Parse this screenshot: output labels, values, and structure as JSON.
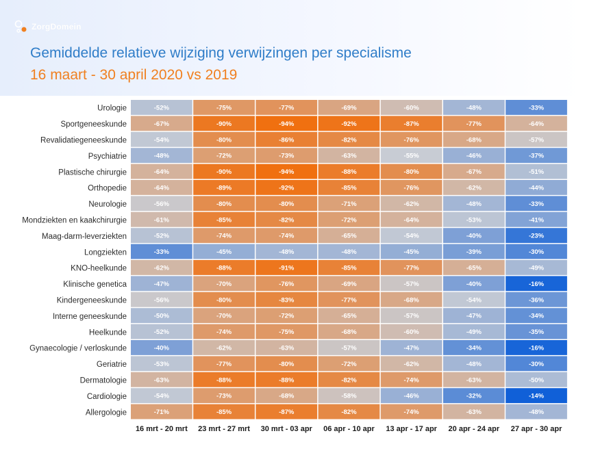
{
  "brand": {
    "name": "ZorgDomein"
  },
  "header": {
    "title": "Gemiddelde relatieve wijziging verwijzingen per specialisme",
    "subtitle": "16 maart - 30 april 2020 vs 2019"
  },
  "colors": {
    "title": "#2f7dc8",
    "subtitle": "#f08020",
    "scale_low": "#f07010",
    "scale_mid": "#c8ccd4",
    "scale_high": "#1060d8"
  },
  "chart_data": {
    "type": "heatmap",
    "title": "Gemiddelde relatieve wijziging verwijzingen per specialisme",
    "subtitle": "16 maart - 30 april 2020 vs 2019",
    "x_categories": [
      "16 mrt - 20 mrt",
      "23 mrt - 27 mrt",
      "30 mrt - 03 apr",
      "06 apr - 10 apr",
      "13 apr - 17 apr",
      "20 apr - 24 apr",
      "27 apr - 30 apr"
    ],
    "y_categories": [
      "Urologie",
      "Sportgeneeskunde",
      "Revalidatiegeneeskunde",
      "Psychiatrie",
      "Plastische chirurgie",
      "Orthopedie",
      "Neurologie",
      "Mondziekten en kaakchirurgie",
      "Maag-darm-leverziekten",
      "Longziekten",
      "KNO-heelkunde",
      "Klinische genetica",
      "Kindergeneeskunde",
      "Interne geneeskunde",
      "Heelkunde",
      "Gynaecologie / verloskunde",
      "Geriatrie",
      "Dermatologie",
      "Cardiologie",
      "Allergologie"
    ],
    "values": [
      [
        -52,
        -75,
        -77,
        -69,
        -60,
        -48,
        -33
      ],
      [
        -67,
        -90,
        -94,
        -92,
        -87,
        -77,
        -64
      ],
      [
        -54,
        -80,
        -86,
        -82,
        -76,
        -68,
        -57
      ],
      [
        -48,
        -72,
        -73,
        -63,
        -55,
        -46,
        -37
      ],
      [
        -64,
        -90,
        -94,
        -88,
        -80,
        -67,
        -51
      ],
      [
        -64,
        -89,
        -92,
        -85,
        -76,
        -62,
        -44
      ],
      [
        -56,
        -80,
        -80,
        -71,
        -62,
        -48,
        -33
      ],
      [
        -61,
        -85,
        -82,
        -72,
        -64,
        -53,
        -41
      ],
      [
        -52,
        -74,
        -74,
        -65,
        -54,
        -40,
        -23
      ],
      [
        -33,
        -45,
        -48,
        -48,
        -45,
        -39,
        -30
      ],
      [
        -62,
        -88,
        -91,
        -85,
        -77,
        -65,
        -49
      ],
      [
        -47,
        -70,
        -76,
        -69,
        -57,
        -40,
        -16
      ],
      [
        -56,
        -80,
        -83,
        -77,
        -68,
        -54,
        -36
      ],
      [
        -50,
        -70,
        -72,
        -65,
        -57,
        -47,
        -34
      ],
      [
        -52,
        -74,
        -75,
        -68,
        -60,
        -49,
        -35
      ],
      [
        -40,
        -62,
        -63,
        -57,
        -47,
        -34,
        -16
      ],
      [
        -53,
        -77,
        -80,
        -72,
        -62,
        -48,
        -30
      ],
      [
        -63,
        -88,
        -88,
        -82,
        -74,
        -63,
        -50
      ],
      [
        -54,
        -73,
        -68,
        -58,
        -46,
        -32,
        -14
      ],
      [
        -71,
        -85,
        -87,
        -82,
        -74,
        -63,
        -48
      ]
    ],
    "value_suffix": "%"
  }
}
